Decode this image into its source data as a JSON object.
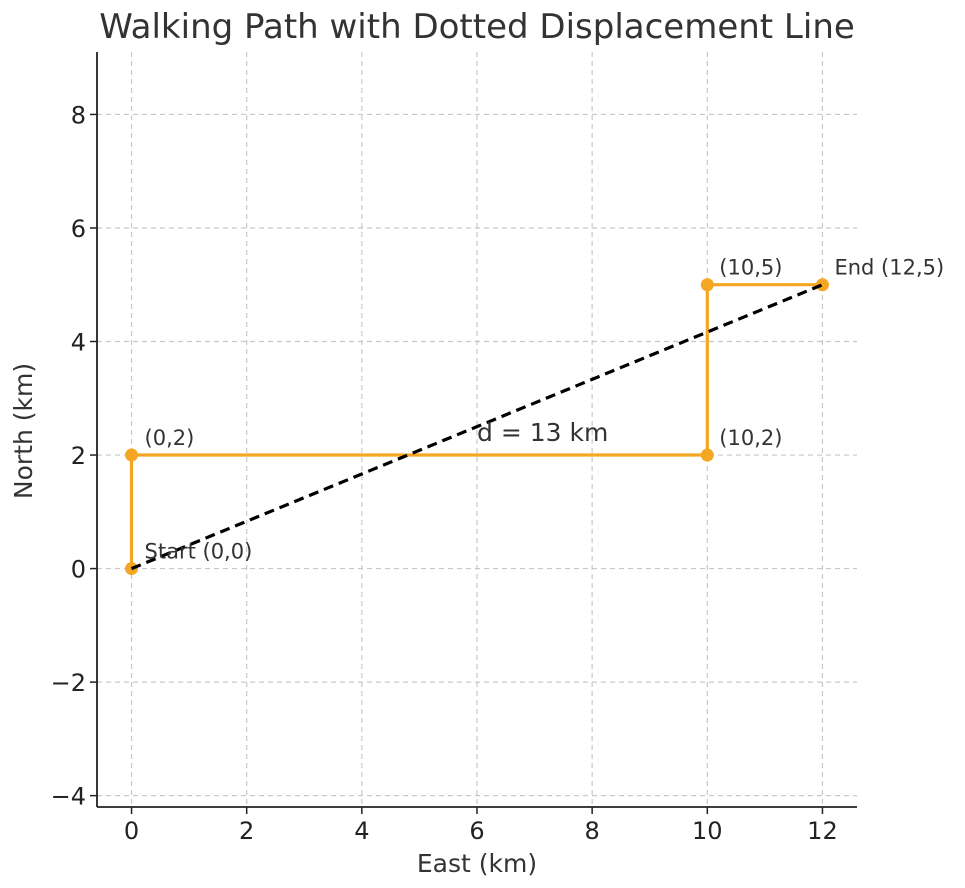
{
  "chart_data": {
    "type": "line",
    "title": "Walking Path with Dotted Displacement Line",
    "xlabel": "East (km)",
    "ylabel": "North (km)",
    "xlim": [
      -0.6,
      12.6
    ],
    "ylim": [
      -4.2,
      9.1
    ],
    "xticks": [
      0,
      2,
      4,
      6,
      8,
      10,
      12
    ],
    "yticks": [
      -4,
      -2,
      0,
      2,
      4,
      6,
      8
    ],
    "xtick_labels": [
      "0",
      "2",
      "4",
      "6",
      "8",
      "10",
      "12"
    ],
    "ytick_labels": [
      "−4",
      "−2",
      "0",
      "2",
      "4",
      "6",
      "8"
    ],
    "grid": true,
    "grid_style": "dashed",
    "series": [
      {
        "style": "solid",
        "color": "#f5a623",
        "markers": true,
        "x": [
          0,
          0,
          10,
          10,
          12
        ],
        "y": [
          0,
          2,
          2,
          5,
          5
        ]
      },
      {
        "style": "dashed",
        "color": "#000000",
        "markers": false,
        "x": [
          0,
          12
        ],
        "y": [
          0,
          5
        ]
      }
    ],
    "point_labels": [
      {
        "text": "Start (0,0)",
        "x": 0,
        "y": 0
      },
      {
        "text": "(0,2)",
        "x": 0,
        "y": 2
      },
      {
        "text": "(10,2)",
        "x": 10,
        "y": 2
      },
      {
        "text": "(10,5)",
        "x": 10,
        "y": 5
      },
      {
        "text": "End (12,5)",
        "x": 12,
        "y": 5
      }
    ],
    "annotations": [
      {
        "text": "d = 13 km",
        "x": 6,
        "y": 2.25
      }
    ]
  }
}
